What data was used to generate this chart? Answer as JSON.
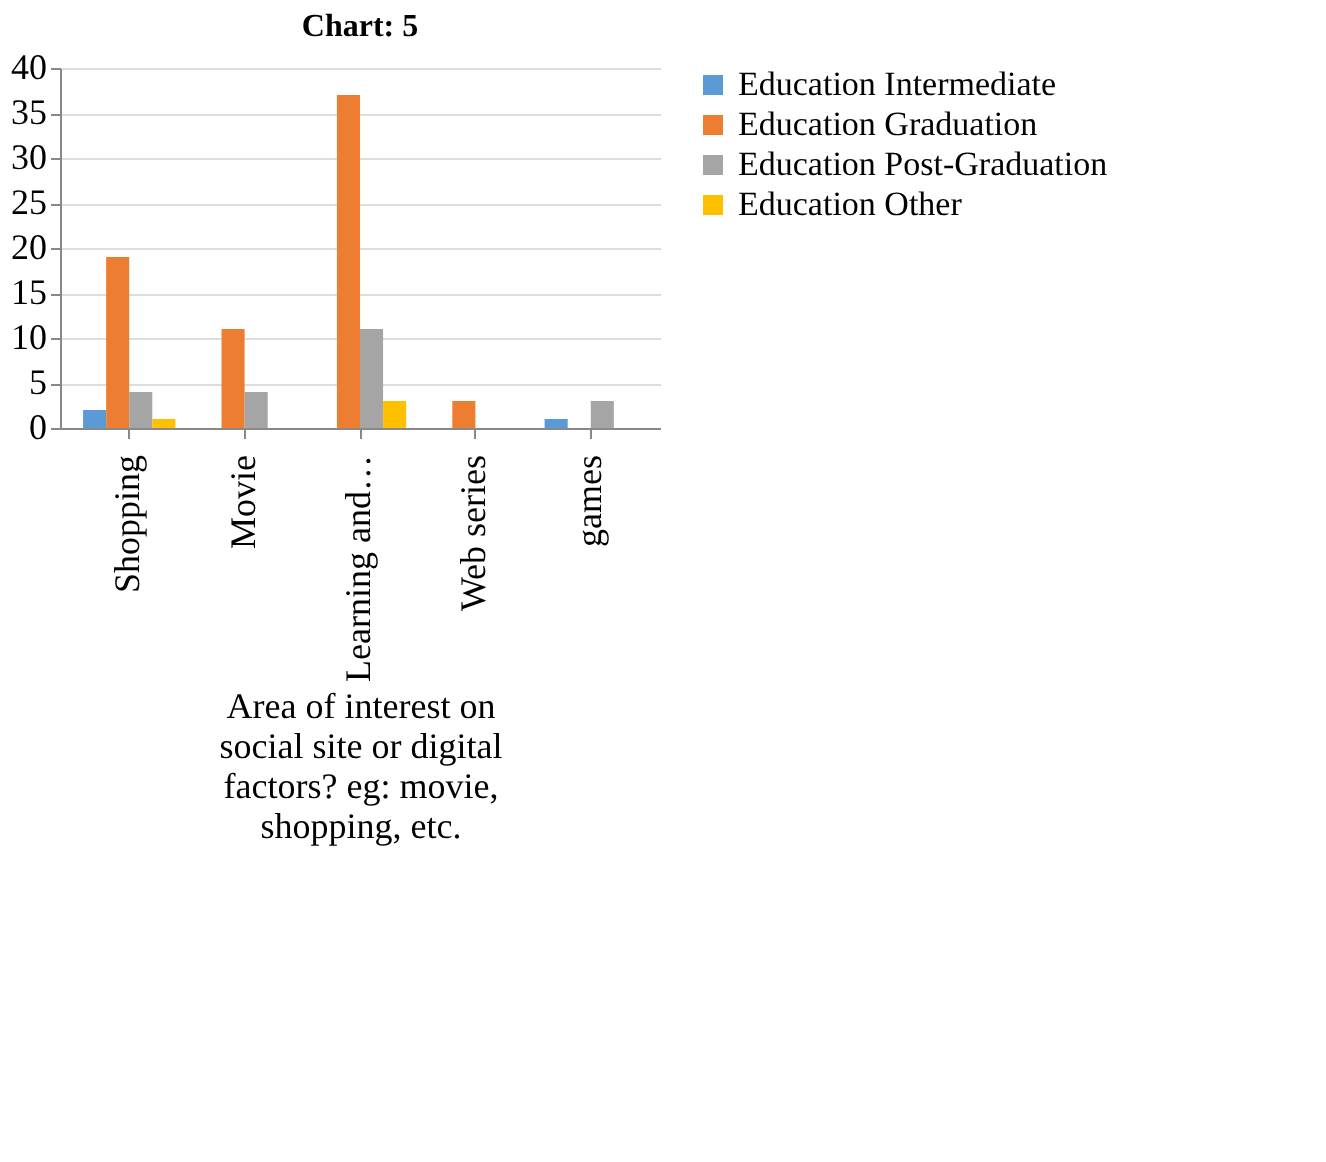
{
  "chart_data": {
    "type": "bar",
    "title": "Chart: 5",
    "xlabel": "Area of interest on social site or digital factors? eg: movie, shopping, etc.",
    "categories": [
      "Shopping",
      "Movie",
      "Learning and…",
      "Web series",
      "games"
    ],
    "series": [
      {
        "name": "Education Intermediate",
        "color": "#5b9bd5",
        "values": [
          2,
          0,
          0,
          0,
          1
        ]
      },
      {
        "name": "Education Graduation",
        "color": "#ed7d31",
        "values": [
          19,
          11,
          37,
          3,
          0
        ]
      },
      {
        "name": "Education Post-Graduation",
        "color": "#a5a5a5",
        "values": [
          4,
          4,
          11,
          0,
          3
        ]
      },
      {
        "name": "Education Other",
        "color": "#ffc000",
        "values": [
          1,
          0,
          3,
          0,
          0
        ]
      }
    ],
    "ylim": [
      0,
      40
    ],
    "yticks": [
      0,
      5,
      10,
      15,
      20,
      25,
      30,
      35,
      40
    ],
    "grid": "y",
    "legend": "right"
  }
}
